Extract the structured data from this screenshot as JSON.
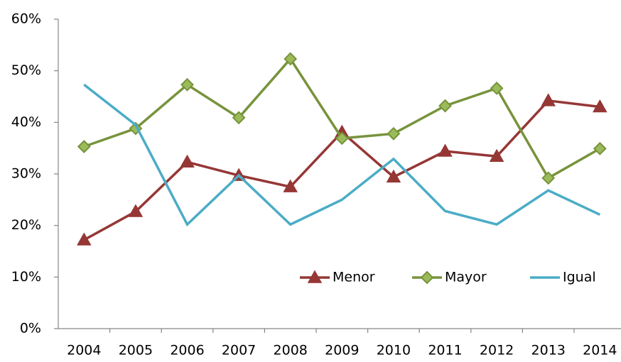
{
  "chart_data": {
    "type": "line",
    "categories": [
      "2004",
      "2005",
      "2006",
      "2007",
      "2008",
      "2009",
      "2010",
      "2011",
      "2012",
      "2013",
      "2014"
    ],
    "series": [
      {
        "name": "Menor",
        "color": "#953735",
        "marker": "triangle",
        "values": [
          17.2,
          22.7,
          32.3,
          29.7,
          27.5,
          38.1,
          29.4,
          34.4,
          33.4,
          44.2,
          43.0
        ]
      },
      {
        "name": "Mayor",
        "color": "#77933c",
        "marker": "diamond",
        "values": [
          35.3,
          38.8,
          47.3,
          40.9,
          52.3,
          36.9,
          37.8,
          43.2,
          46.6,
          29.2,
          34.9
        ]
      },
      {
        "name": "Igual",
        "color": "#4bacc6",
        "values": [
          47.3,
          39.5,
          20.2,
          29.7,
          20.2,
          25.0,
          32.9,
          22.8,
          20.2,
          26.8,
          22.1
        ]
      }
    ],
    "ylim": [
      0,
      60
    ],
    "yticks": [
      {
        "value": 0,
        "label": "0%"
      },
      {
        "value": 10,
        "label": "10%"
      },
      {
        "value": 20,
        "label": "20%"
      },
      {
        "value": 30,
        "label": "30%"
      },
      {
        "value": 40,
        "label": "40%"
      },
      {
        "value": 50,
        "label": "50%"
      },
      {
        "value": 60,
        "label": "60%"
      }
    ],
    "grid": false,
    "legend": "lower-right"
  }
}
